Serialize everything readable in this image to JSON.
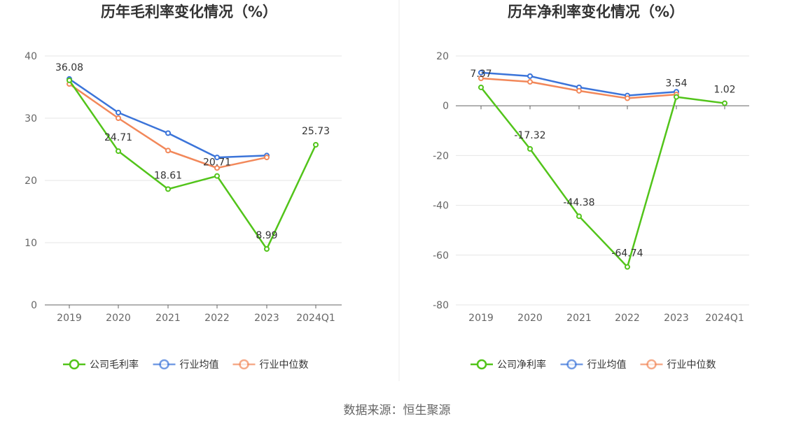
{
  "source_text": "数据来源：恒生聚源",
  "chart_data": [
    {
      "type": "line",
      "title": "历年毛利率变化情况（%）",
      "categories": [
        "2019",
        "2020",
        "2021",
        "2022",
        "2023",
        "2024Q1"
      ],
      "ylim": [
        0,
        40
      ],
      "yticks": [
        0,
        10,
        20,
        30,
        40
      ],
      "grid": true,
      "legend_position": "bottom",
      "series": [
        {
          "name": "公司毛利率",
          "color": "#52c41a",
          "values": [
            36.08,
            24.71,
            18.61,
            20.71,
            8.99,
            25.73
          ],
          "labels": [
            "36.08",
            "24.71",
            "18.61",
            "20.71",
            "8.99",
            "25.73"
          ]
        },
        {
          "name": "行业均值",
          "color": "#3b74d9",
          "values": [
            36.3,
            30.9,
            27.6,
            23.7,
            24.0,
            null
          ]
        },
        {
          "name": "行业中位数",
          "color": "#f2885a",
          "values": [
            35.5,
            30.0,
            24.8,
            22.0,
            23.7,
            null
          ]
        }
      ]
    },
    {
      "type": "line",
      "title": "历年净利率变化情况（%）",
      "categories": [
        "2019",
        "2020",
        "2021",
        "2022",
        "2023",
        "2024Q1"
      ],
      "ylim": [
        -80,
        20
      ],
      "yticks": [
        -80,
        -60,
        -40,
        -20,
        0,
        20
      ],
      "grid": true,
      "legend_position": "bottom",
      "series": [
        {
          "name": "公司净利率",
          "color": "#52c41a",
          "values": [
            7.37,
            -17.32,
            -44.38,
            -64.74,
            3.54,
            1.02
          ],
          "labels": [
            "7.37",
            "-17.32",
            "-44.38",
            "-64.74",
            "3.54",
            "1.02"
          ]
        },
        {
          "name": "行业均值",
          "color": "#3b74d9",
          "values": [
            13.3,
            11.9,
            7.4,
            4.1,
            5.6,
            null
          ]
        },
        {
          "name": "行业中位数",
          "color": "#f2885a",
          "values": [
            11.0,
            9.6,
            6.0,
            3.0,
            4.5,
            null
          ]
        }
      ]
    }
  ]
}
